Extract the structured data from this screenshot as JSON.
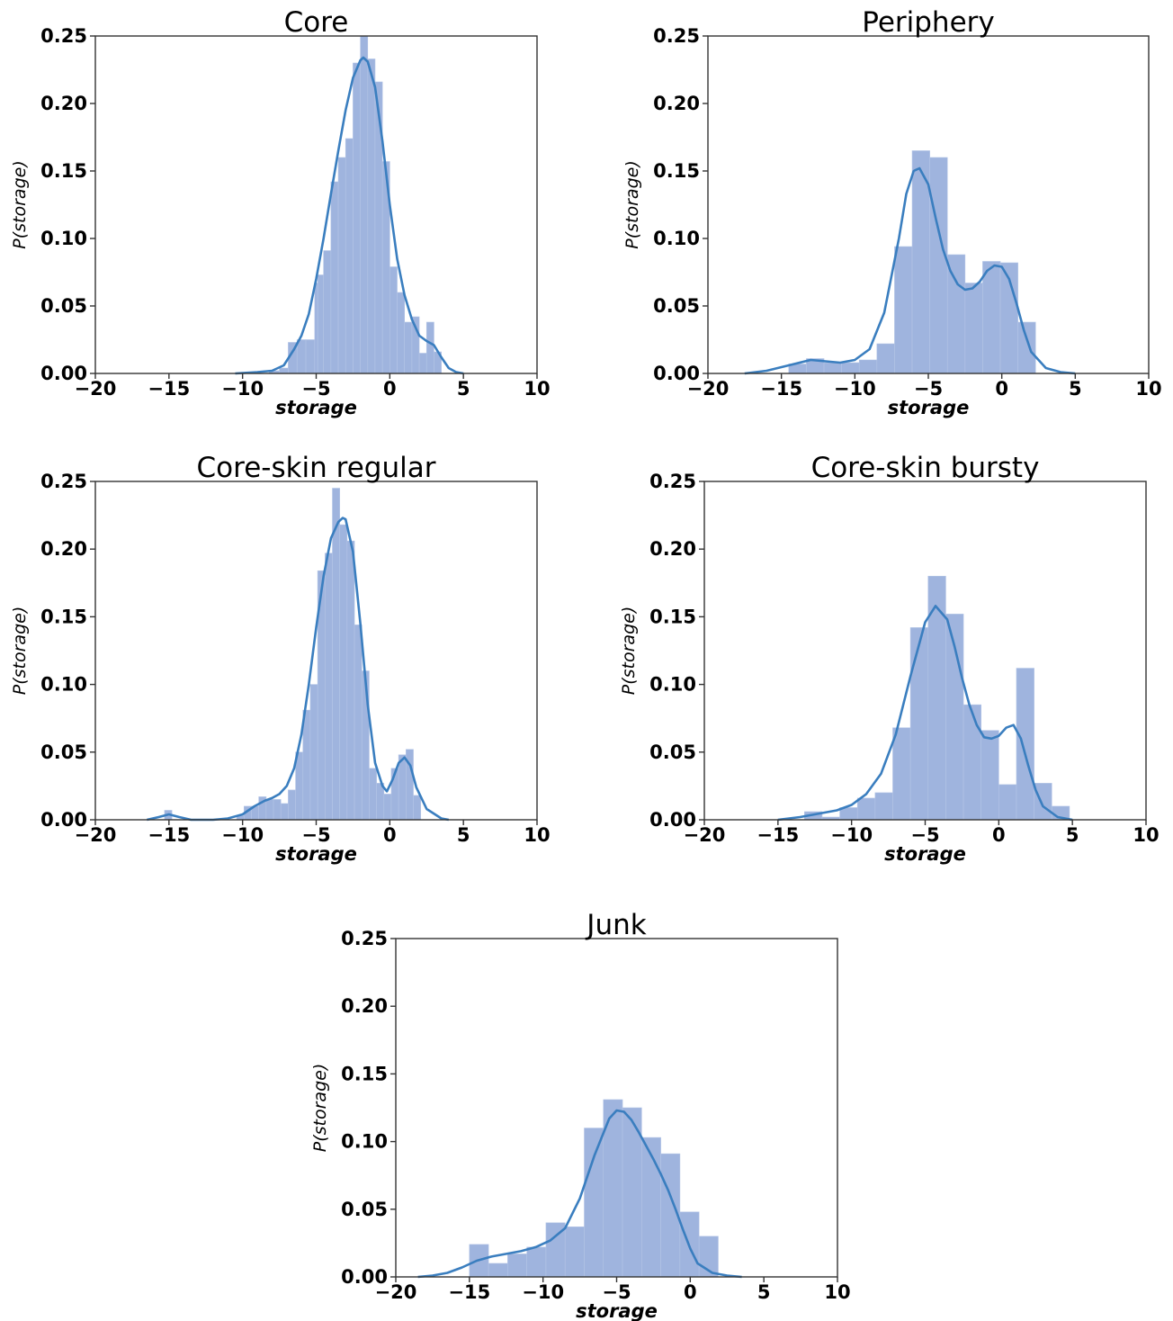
{
  "chart_data": [
    {
      "type": "bar",
      "title": "Core",
      "xlabel": "storage",
      "ylabel": "P(storage)",
      "xlim": [
        -20,
        10
      ],
      "ylim": [
        0,
        0.25
      ],
      "xticks": [
        "−20",
        "−15",
        "−10",
        "−5",
        "0",
        "5",
        "10"
      ],
      "yticks": [
        "0.00",
        "0.05",
        "0.10",
        "0.15",
        "0.20",
        "0.25"
      ],
      "grid": false,
      "bins": [
        {
          "x0": -8.2,
          "x1": -7.5,
          "y": 0.002
        },
        {
          "x0": -7.5,
          "x1": -6.9,
          "y": 0.004
        },
        {
          "x0": -6.9,
          "x1": -6.3,
          "y": 0.023
        },
        {
          "x0": -6.3,
          "x1": -5.7,
          "y": 0.025
        },
        {
          "x0": -5.7,
          "x1": -5.1,
          "y": 0.025
        },
        {
          "x0": -5.1,
          "x1": -4.9,
          "y": 0.067
        },
        {
          "x0": -4.9,
          "x1": -4.5,
          "y": 0.073
        },
        {
          "x0": -4.5,
          "x1": -4.0,
          "y": 0.091
        },
        {
          "x0": -4.0,
          "x1": -3.5,
          "y": 0.142
        },
        {
          "x0": -3.5,
          "x1": -3.0,
          "y": 0.16
        },
        {
          "x0": -3.0,
          "x1": -2.5,
          "y": 0.174
        },
        {
          "x0": -2.5,
          "x1": -2.0,
          "y": 0.23
        },
        {
          "x0": -2.0,
          "x1": -1.5,
          "y": 0.25
        },
        {
          "x0": -1.5,
          "x1": -1.0,
          "y": 0.233
        },
        {
          "x0": -1.0,
          "x1": -0.5,
          "y": 0.216
        },
        {
          "x0": -0.5,
          "x1": 0.0,
          "y": 0.157
        },
        {
          "x0": 0.0,
          "x1": 0.5,
          "y": 0.079
        },
        {
          "x0": 0.5,
          "x1": 1.0,
          "y": 0.06
        },
        {
          "x0": 1.0,
          "x1": 1.5,
          "y": 0.038
        },
        {
          "x0": 1.5,
          "x1": 2.0,
          "y": 0.042
        },
        {
          "x0": 2.0,
          "x1": 2.5,
          "y": 0.015
        },
        {
          "x0": 2.5,
          "x1": 3.0,
          "y": 0.038
        },
        {
          "x0": 3.0,
          "x1": 3.5,
          "y": 0.016
        }
      ],
      "kde": [
        [
          -10.5,
          0.0
        ],
        [
          -9,
          0.001
        ],
        [
          -8,
          0.002
        ],
        [
          -7.2,
          0.006
        ],
        [
          -6.5,
          0.018
        ],
        [
          -6,
          0.028
        ],
        [
          -5.5,
          0.044
        ],
        [
          -5,
          0.07
        ],
        [
          -4.5,
          0.1
        ],
        [
          -4,
          0.133
        ],
        [
          -3.5,
          0.165
        ],
        [
          -3,
          0.195
        ],
        [
          -2.5,
          0.219
        ],
        [
          -2,
          0.232
        ],
        [
          -1.8,
          0.234
        ],
        [
          -1.5,
          0.231
        ],
        [
          -1,
          0.212
        ],
        [
          -0.5,
          0.172
        ],
        [
          0,
          0.125
        ],
        [
          0.5,
          0.085
        ],
        [
          1,
          0.058
        ],
        [
          1.5,
          0.04
        ],
        [
          2,
          0.028
        ],
        [
          2.5,
          0.024
        ],
        [
          3,
          0.021
        ],
        [
          3.5,
          0.012
        ],
        [
          4,
          0.004
        ],
        [
          4.5,
          0.001
        ],
        [
          5,
          0.0
        ]
      ]
    },
    {
      "type": "bar",
      "title": "Periphery",
      "xlabel": "storage",
      "ylabel": "P(storage)",
      "xlim": [
        -20,
        10
      ],
      "ylim": [
        0,
        0.25
      ],
      "xticks": [
        "−20",
        "−15",
        "−10",
        "−5",
        "0",
        "5",
        "10"
      ],
      "yticks": [
        "0.00",
        "0.05",
        "0.10",
        "0.15",
        "0.20",
        "0.25"
      ],
      "grid": false,
      "bins": [
        {
          "x0": -14.5,
          "x1": -13.3,
          "y": 0.007
        },
        {
          "x0": -13.3,
          "x1": -12.1,
          "y": 0.011
        },
        {
          "x0": -12.1,
          "x1": -10.9,
          "y": 0.008
        },
        {
          "x0": -10.9,
          "x1": -9.7,
          "y": 0.008
        },
        {
          "x0": -9.7,
          "x1": -8.5,
          "y": 0.01
        },
        {
          "x0": -8.5,
          "x1": -7.3,
          "y": 0.022
        },
        {
          "x0": -7.3,
          "x1": -6.1,
          "y": 0.094
        },
        {
          "x0": -6.1,
          "x1": -4.9,
          "y": 0.165
        },
        {
          "x0": -4.9,
          "x1": -3.7,
          "y": 0.16
        },
        {
          "x0": -3.7,
          "x1": -2.5,
          "y": 0.088
        },
        {
          "x0": -2.5,
          "x1": -1.3,
          "y": 0.067
        },
        {
          "x0": -1.3,
          "x1": -0.1,
          "y": 0.083
        },
        {
          "x0": -0.1,
          "x1": 1.1,
          "y": 0.082
        },
        {
          "x0": 1.1,
          "x1": 2.3,
          "y": 0.038
        }
      ],
      "kde": [
        [
          -17.5,
          0.0
        ],
        [
          -16,
          0.002
        ],
        [
          -14.5,
          0.006
        ],
        [
          -13,
          0.01
        ],
        [
          -12,
          0.009
        ],
        [
          -11,
          0.008
        ],
        [
          -10,
          0.01
        ],
        [
          -9,
          0.018
        ],
        [
          -8,
          0.045
        ],
        [
          -7,
          0.1
        ],
        [
          -6.5,
          0.133
        ],
        [
          -6,
          0.15
        ],
        [
          -5.6,
          0.152
        ],
        [
          -5,
          0.14
        ],
        [
          -4.5,
          0.115
        ],
        [
          -4,
          0.092
        ],
        [
          -3.5,
          0.076
        ],
        [
          -3,
          0.066
        ],
        [
          -2.5,
          0.062
        ],
        [
          -2,
          0.063
        ],
        [
          -1.5,
          0.068
        ],
        [
          -1,
          0.076
        ],
        [
          -0.5,
          0.08
        ],
        [
          0,
          0.079
        ],
        [
          0.5,
          0.07
        ],
        [
          1,
          0.052
        ],
        [
          1.5,
          0.032
        ],
        [
          2,
          0.016
        ],
        [
          3,
          0.004
        ],
        [
          4,
          0.001
        ],
        [
          5,
          0.0
        ]
      ]
    },
    {
      "type": "bar",
      "title": "Core-skin regular",
      "xlabel": "storage",
      "ylabel": "P(storage)",
      "xlim": [
        -20,
        10
      ],
      "ylim": [
        0,
        0.25
      ],
      "xticks": [
        "−20",
        "−15",
        "−10",
        "−5",
        "0",
        "5",
        "10"
      ],
      "yticks": [
        "0.00",
        "0.05",
        "0.10",
        "0.15",
        "0.20",
        "0.25"
      ],
      "grid": false,
      "bins": [
        {
          "x0": -15.3,
          "x1": -14.8,
          "y": 0.007
        },
        {
          "x0": -10.4,
          "x1": -9.9,
          "y": 0.003
        },
        {
          "x0": -9.9,
          "x1": -9.4,
          "y": 0.01
        },
        {
          "x0": -9.4,
          "x1": -8.9,
          "y": 0.01
        },
        {
          "x0": -8.9,
          "x1": -8.4,
          "y": 0.017
        },
        {
          "x0": -8.4,
          "x1": -7.9,
          "y": 0.015
        },
        {
          "x0": -7.9,
          "x1": -7.4,
          "y": 0.015
        },
        {
          "x0": -7.4,
          "x1": -6.9,
          "y": 0.012
        },
        {
          "x0": -6.9,
          "x1": -6.4,
          "y": 0.022
        },
        {
          "x0": -6.4,
          "x1": -5.9,
          "y": 0.05
        },
        {
          "x0": -5.9,
          "x1": -5.4,
          "y": 0.081
        },
        {
          "x0": -5.4,
          "x1": -4.9,
          "y": 0.1
        },
        {
          "x0": -4.9,
          "x1": -4.4,
          "y": 0.184
        },
        {
          "x0": -4.4,
          "x1": -3.9,
          "y": 0.197
        },
        {
          "x0": -3.9,
          "x1": -3.4,
          "y": 0.245
        },
        {
          "x0": -3.4,
          "x1": -2.9,
          "y": 0.218
        },
        {
          "x0": -2.9,
          "x1": -2.4,
          "y": 0.206
        },
        {
          "x0": -2.4,
          "x1": -1.9,
          "y": 0.144
        },
        {
          "x0": -1.9,
          "x1": -1.4,
          "y": 0.11
        },
        {
          "x0": -1.4,
          "x1": -0.9,
          "y": 0.038
        },
        {
          "x0": -0.9,
          "x1": -0.4,
          "y": 0.027
        },
        {
          "x0": -0.4,
          "x1": 0.1,
          "y": 0.019
        },
        {
          "x0": 0.1,
          "x1": 0.6,
          "y": 0.038
        },
        {
          "x0": 0.6,
          "x1": 1.1,
          "y": 0.048
        },
        {
          "x0": 1.1,
          "x1": 1.6,
          "y": 0.052
        },
        {
          "x0": 1.6,
          "x1": 2.1,
          "y": 0.018
        }
      ],
      "kde": [
        [
          -16.5,
          0.0
        ],
        [
          -15.7,
          0.002
        ],
        [
          -15,
          0.004
        ],
        [
          -14.3,
          0.002
        ],
        [
          -13.5,
          0.0
        ],
        [
          -12,
          0.0
        ],
        [
          -11,
          0.001
        ],
        [
          -10,
          0.004
        ],
        [
          -9.2,
          0.01
        ],
        [
          -8.5,
          0.014
        ],
        [
          -8,
          0.016
        ],
        [
          -7.5,
          0.019
        ],
        [
          -7,
          0.025
        ],
        [
          -6.5,
          0.038
        ],
        [
          -6,
          0.063
        ],
        [
          -5.5,
          0.1
        ],
        [
          -5,
          0.142
        ],
        [
          -4.5,
          0.18
        ],
        [
          -4,
          0.208
        ],
        [
          -3.5,
          0.22
        ],
        [
          -3.2,
          0.223
        ],
        [
          -3,
          0.222
        ],
        [
          -2.5,
          0.198
        ],
        [
          -2,
          0.145
        ],
        [
          -1.5,
          0.085
        ],
        [
          -1,
          0.042
        ],
        [
          -0.5,
          0.025
        ],
        [
          -0.2,
          0.021
        ],
        [
          0.2,
          0.03
        ],
        [
          0.6,
          0.042
        ],
        [
          1,
          0.046
        ],
        [
          1.4,
          0.04
        ],
        [
          1.8,
          0.024
        ],
        [
          2.5,
          0.008
        ],
        [
          3.5,
          0.001
        ],
        [
          4,
          0.0
        ]
      ]
    },
    {
      "type": "bar",
      "title": "Core-skin bursty",
      "xlabel": "storage",
      "ylabel": "P(storage)",
      "xlim": [
        -20,
        10
      ],
      "ylim": [
        0,
        0.25
      ],
      "xticks": [
        "−20",
        "−15",
        "−10",
        "−5",
        "0",
        "5",
        "10"
      ],
      "yticks": [
        "0.00",
        "0.05",
        "0.10",
        "0.15",
        "0.20",
        "0.25"
      ],
      "grid": false,
      "bins": [
        {
          "x0": -13.2,
          "x1": -12.0,
          "y": 0.006
        },
        {
          "x0": -12.0,
          "x1": -10.8,
          "y": 0.002
        },
        {
          "x0": -10.8,
          "x1": -9.6,
          "y": 0.009
        },
        {
          "x0": -9.6,
          "x1": -8.4,
          "y": 0.016
        },
        {
          "x0": -8.4,
          "x1": -7.2,
          "y": 0.02
        },
        {
          "x0": -7.2,
          "x1": -6.0,
          "y": 0.068
        },
        {
          "x0": -6.0,
          "x1": -4.8,
          "y": 0.142
        },
        {
          "x0": -4.8,
          "x1": -3.6,
          "y": 0.18
        },
        {
          "x0": -3.6,
          "x1": -2.4,
          "y": 0.152
        },
        {
          "x0": -2.4,
          "x1": -1.2,
          "y": 0.085
        },
        {
          "x0": -1.2,
          "x1": 0.0,
          "y": 0.066
        },
        {
          "x0": 0.0,
          "x1": 1.2,
          "y": 0.026
        },
        {
          "x0": 1.2,
          "x1": 2.4,
          "y": 0.112
        },
        {
          "x0": 2.4,
          "x1": 3.6,
          "y": 0.027
        },
        {
          "x0": 3.6,
          "x1": 4.8,
          "y": 0.01
        }
      ],
      "kde": [
        [
          -15,
          0.0
        ],
        [
          -13.5,
          0.002
        ],
        [
          -12,
          0.005
        ],
        [
          -11,
          0.007
        ],
        [
          -10,
          0.011
        ],
        [
          -9,
          0.019
        ],
        [
          -8,
          0.034
        ],
        [
          -7,
          0.063
        ],
        [
          -6,
          0.106
        ],
        [
          -5,
          0.146
        ],
        [
          -4.3,
          0.158
        ],
        [
          -3.5,
          0.148
        ],
        [
          -3,
          0.128
        ],
        [
          -2.5,
          0.105
        ],
        [
          -2,
          0.085
        ],
        [
          -1.5,
          0.07
        ],
        [
          -1,
          0.061
        ],
        [
          -0.5,
          0.06
        ],
        [
          0,
          0.062
        ],
        [
          0.5,
          0.068
        ],
        [
          1,
          0.07
        ],
        [
          1.5,
          0.06
        ],
        [
          2,
          0.04
        ],
        [
          2.5,
          0.022
        ],
        [
          3,
          0.01
        ],
        [
          4,
          0.002
        ],
        [
          5,
          0.0
        ]
      ]
    },
    {
      "type": "bar",
      "title": "Junk",
      "xlabel": "storage",
      "ylabel": "P(storage)",
      "xlim": [
        -20,
        10
      ],
      "ylim": [
        0,
        0.25
      ],
      "xticks": [
        "−20",
        "−15",
        "−10",
        "−5",
        "0",
        "5",
        "10"
      ],
      "yticks": [
        "0.00",
        "0.05",
        "0.10",
        "0.15",
        "0.20",
        "0.25"
      ],
      "grid": false,
      "bins": [
        {
          "x0": -15.0,
          "x1": -13.7,
          "y": 0.024
        },
        {
          "x0": -13.7,
          "x1": -12.4,
          "y": 0.01
        },
        {
          "x0": -12.4,
          "x1": -11.1,
          "y": 0.017
        },
        {
          "x0": -11.1,
          "x1": -9.8,
          "y": 0.022
        },
        {
          "x0": -9.8,
          "x1": -8.5,
          "y": 0.04
        },
        {
          "x0": -8.5,
          "x1": -7.2,
          "y": 0.037
        },
        {
          "x0": -7.2,
          "x1": -5.9,
          "y": 0.11
        },
        {
          "x0": -5.9,
          "x1": -4.6,
          "y": 0.131
        },
        {
          "x0": -4.6,
          "x1": -3.3,
          "y": 0.125
        },
        {
          "x0": -3.3,
          "x1": -2.0,
          "y": 0.103
        },
        {
          "x0": -2.0,
          "x1": -0.7,
          "y": 0.091
        },
        {
          "x0": -0.7,
          "x1": 0.6,
          "y": 0.048
        },
        {
          "x0": 0.6,
          "x1": 1.9,
          "y": 0.03
        }
      ],
      "kde": [
        [
          -18.5,
          0.0
        ],
        [
          -17.5,
          0.001
        ],
        [
          -16.5,
          0.003
        ],
        [
          -15.5,
          0.007
        ],
        [
          -14.5,
          0.012
        ],
        [
          -13.5,
          0.015
        ],
        [
          -12.5,
          0.017
        ],
        [
          -11.5,
          0.019
        ],
        [
          -10.5,
          0.022
        ],
        [
          -9.5,
          0.027
        ],
        [
          -8.5,
          0.036
        ],
        [
          -7.5,
          0.058
        ],
        [
          -6.5,
          0.09
        ],
        [
          -5.5,
          0.117
        ],
        [
          -5,
          0.123
        ],
        [
          -4.5,
          0.122
        ],
        [
          -4,
          0.116
        ],
        [
          -3.5,
          0.107
        ],
        [
          -3,
          0.097
        ],
        [
          -2.5,
          0.087
        ],
        [
          -2,
          0.076
        ],
        [
          -1.5,
          0.064
        ],
        [
          -1,
          0.05
        ],
        [
          -0.5,
          0.035
        ],
        [
          0,
          0.021
        ],
        [
          0.5,
          0.01
        ],
        [
          1.5,
          0.003
        ],
        [
          2.5,
          0.001
        ],
        [
          3.5,
          0.0
        ]
      ]
    }
  ]
}
